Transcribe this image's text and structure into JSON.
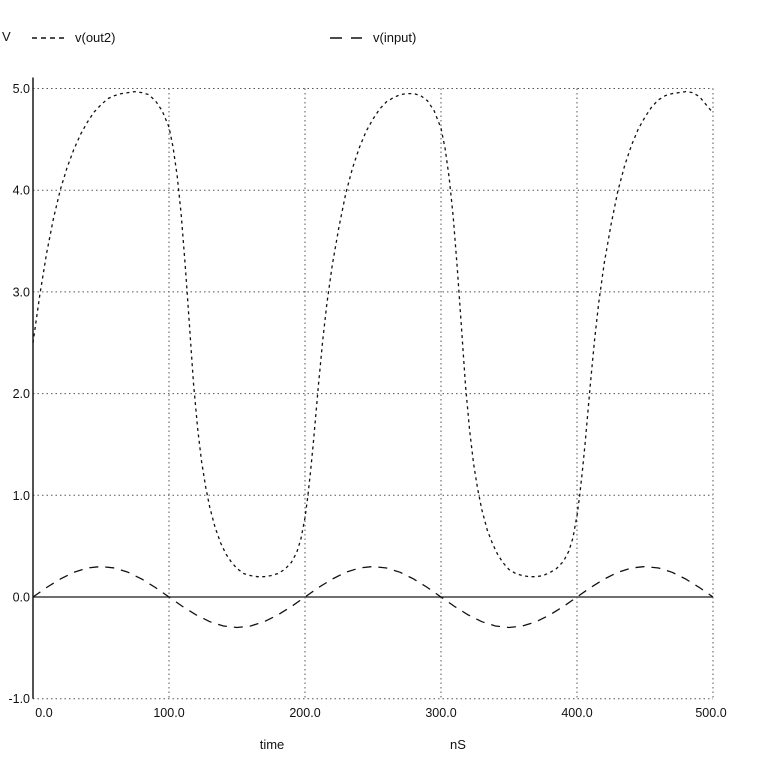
{
  "page": {
    "background": "#ffffff",
    "foreground": "#111111",
    "grid_color": "#555555"
  },
  "y_axis_title": "V",
  "legend": {
    "items": [
      {
        "label": "v(out2)",
        "line_style": "dotted"
      },
      {
        "label": "v(input)",
        "line_style": "dashed"
      }
    ]
  },
  "x_axis": {
    "title": "time",
    "unit": "nS"
  },
  "chart_data": {
    "type": "line",
    "title": "",
    "xlabel": "time",
    "x_unit": "nS",
    "ylabel": "V",
    "xlim": [
      0,
      500
    ],
    "ylim": [
      -1.0,
      5.0
    ],
    "x_ticks": [
      0,
      100,
      200,
      300,
      400,
      500
    ],
    "x_tick_labels": [
      "0.0",
      "100.0",
      "200.0",
      "300.0",
      "400.0",
      "500.0"
    ],
    "y_ticks": [
      5,
      4,
      3,
      2,
      1,
      0,
      -1
    ],
    "y_tick_labels": [
      "5.0",
      "4.0",
      "3.0",
      "2.0",
      "1.0",
      "0.0",
      "-1.0"
    ],
    "grid": true,
    "zero_line": "solid",
    "legend_position": "top",
    "series": [
      {
        "name": "v(out2)",
        "line_style": "dotted",
        "points": [
          [
            0,
            2.5
          ],
          [
            5,
            2.97
          ],
          [
            10,
            3.38
          ],
          [
            15,
            3.72
          ],
          [
            20,
            4.0
          ],
          [
            25,
            4.22
          ],
          [
            30,
            4.4
          ],
          [
            35,
            4.55
          ],
          [
            40,
            4.67
          ],
          [
            45,
            4.77
          ],
          [
            50,
            4.84
          ],
          [
            55,
            4.9
          ],
          [
            60,
            4.93
          ],
          [
            65,
            4.95
          ],
          [
            70,
            4.96
          ],
          [
            75,
            4.97
          ],
          [
            80,
            4.96
          ],
          [
            85,
            4.94
          ],
          [
            90,
            4.88
          ],
          [
            95,
            4.78
          ],
          [
            100,
            4.62
          ],
          [
            103,
            4.42
          ],
          [
            106,
            4.14
          ],
          [
            109,
            3.76
          ],
          [
            112,
            3.25
          ],
          [
            115,
            2.68
          ],
          [
            118,
            2.1
          ],
          [
            121,
            1.66
          ],
          [
            124,
            1.33
          ],
          [
            127,
            1.08
          ],
          [
            130,
            0.88
          ],
          [
            134,
            0.68
          ],
          [
            138,
            0.53
          ],
          [
            142,
            0.42
          ],
          [
            146,
            0.34
          ],
          [
            150,
            0.28
          ],
          [
            155,
            0.23
          ],
          [
            160,
            0.21
          ],
          [
            165,
            0.2
          ],
          [
            170,
            0.2
          ],
          [
            175,
            0.21
          ],
          [
            180,
            0.23
          ],
          [
            185,
            0.27
          ],
          [
            190,
            0.34
          ],
          [
            194,
            0.44
          ],
          [
            197,
            0.57
          ],
          [
            200,
            0.78
          ],
          [
            202,
            0.98
          ],
          [
            204,
            1.22
          ],
          [
            206,
            1.5
          ],
          [
            208,
            1.8
          ],
          [
            210,
            2.1
          ],
          [
            213,
            2.52
          ],
          [
            216,
            2.88
          ],
          [
            220,
            3.26
          ],
          [
            225,
            3.64
          ],
          [
            230,
            3.97
          ],
          [
            235,
            4.22
          ],
          [
            240,
            4.42
          ],
          [
            245,
            4.58
          ],
          [
            250,
            4.7
          ],
          [
            255,
            4.8
          ],
          [
            260,
            4.87
          ],
          [
            265,
            4.91
          ],
          [
            270,
            4.94
          ],
          [
            275,
            4.95
          ],
          [
            280,
            4.95
          ],
          [
            285,
            4.93
          ],
          [
            290,
            4.88
          ],
          [
            295,
            4.78
          ],
          [
            300,
            4.61
          ],
          [
            303,
            4.41
          ],
          [
            306,
            4.12
          ],
          [
            309,
            3.74
          ],
          [
            312,
            3.23
          ],
          [
            315,
            2.66
          ],
          [
            318,
            2.08
          ],
          [
            321,
            1.64
          ],
          [
            324,
            1.31
          ],
          [
            327,
            1.06
          ],
          [
            330,
            0.86
          ],
          [
            334,
            0.66
          ],
          [
            338,
            0.52
          ],
          [
            342,
            0.41
          ],
          [
            346,
            0.33
          ],
          [
            350,
            0.27
          ],
          [
            355,
            0.23
          ],
          [
            360,
            0.21
          ],
          [
            365,
            0.2
          ],
          [
            370,
            0.2
          ],
          [
            375,
            0.21
          ],
          [
            380,
            0.24
          ],
          [
            385,
            0.28
          ],
          [
            390,
            0.35
          ],
          [
            394,
            0.45
          ],
          [
            397,
            0.58
          ],
          [
            400,
            0.8
          ],
          [
            402,
            1.0
          ],
          [
            404,
            1.24
          ],
          [
            406,
            1.52
          ],
          [
            408,
            1.82
          ],
          [
            410,
            2.12
          ],
          [
            413,
            2.54
          ],
          [
            416,
            2.9
          ],
          [
            420,
            3.28
          ],
          [
            425,
            3.66
          ],
          [
            430,
            3.99
          ],
          [
            435,
            4.24
          ],
          [
            440,
            4.44
          ],
          [
            445,
            4.6
          ],
          [
            450,
            4.72
          ],
          [
            455,
            4.82
          ],
          [
            460,
            4.89
          ],
          [
            465,
            4.93
          ],
          [
            470,
            4.95
          ],
          [
            475,
            4.96
          ],
          [
            480,
            4.97
          ],
          [
            485,
            4.96
          ],
          [
            490,
            4.92
          ],
          [
            495,
            4.84
          ],
          [
            500,
            4.76
          ]
        ]
      },
      {
        "name": "v(input)",
        "line_style": "dashed",
        "points": [
          [
            0,
            0
          ],
          [
            10,
            0.093
          ],
          [
            20,
            0.176
          ],
          [
            30,
            0.243
          ],
          [
            40,
            0.285
          ],
          [
            50,
            0.3
          ],
          [
            60,
            0.285
          ],
          [
            70,
            0.243
          ],
          [
            80,
            0.176
          ],
          [
            90,
            0.093
          ],
          [
            100,
            0
          ],
          [
            110,
            -0.093
          ],
          [
            120,
            -0.176
          ],
          [
            130,
            -0.243
          ],
          [
            140,
            -0.285
          ],
          [
            150,
            -0.3
          ],
          [
            160,
            -0.285
          ],
          [
            170,
            -0.243
          ],
          [
            180,
            -0.176
          ],
          [
            190,
            -0.093
          ],
          [
            200,
            0
          ],
          [
            210,
            0.093
          ],
          [
            220,
            0.176
          ],
          [
            230,
            0.243
          ],
          [
            240,
            0.285
          ],
          [
            250,
            0.3
          ],
          [
            260,
            0.285
          ],
          [
            270,
            0.243
          ],
          [
            280,
            0.176
          ],
          [
            290,
            0.093
          ],
          [
            300,
            0
          ],
          [
            310,
            -0.093
          ],
          [
            320,
            -0.176
          ],
          [
            330,
            -0.243
          ],
          [
            340,
            -0.285
          ],
          [
            350,
            -0.3
          ],
          [
            360,
            -0.285
          ],
          [
            370,
            -0.243
          ],
          [
            380,
            -0.176
          ],
          [
            390,
            -0.093
          ],
          [
            400,
            0
          ],
          [
            410,
            0.093
          ],
          [
            420,
            0.176
          ],
          [
            430,
            0.243
          ],
          [
            440,
            0.285
          ],
          [
            450,
            0.3
          ],
          [
            460,
            0.285
          ],
          [
            470,
            0.243
          ],
          [
            480,
            0.176
          ],
          [
            490,
            0.093
          ],
          [
            500,
            0
          ]
        ]
      }
    ]
  }
}
